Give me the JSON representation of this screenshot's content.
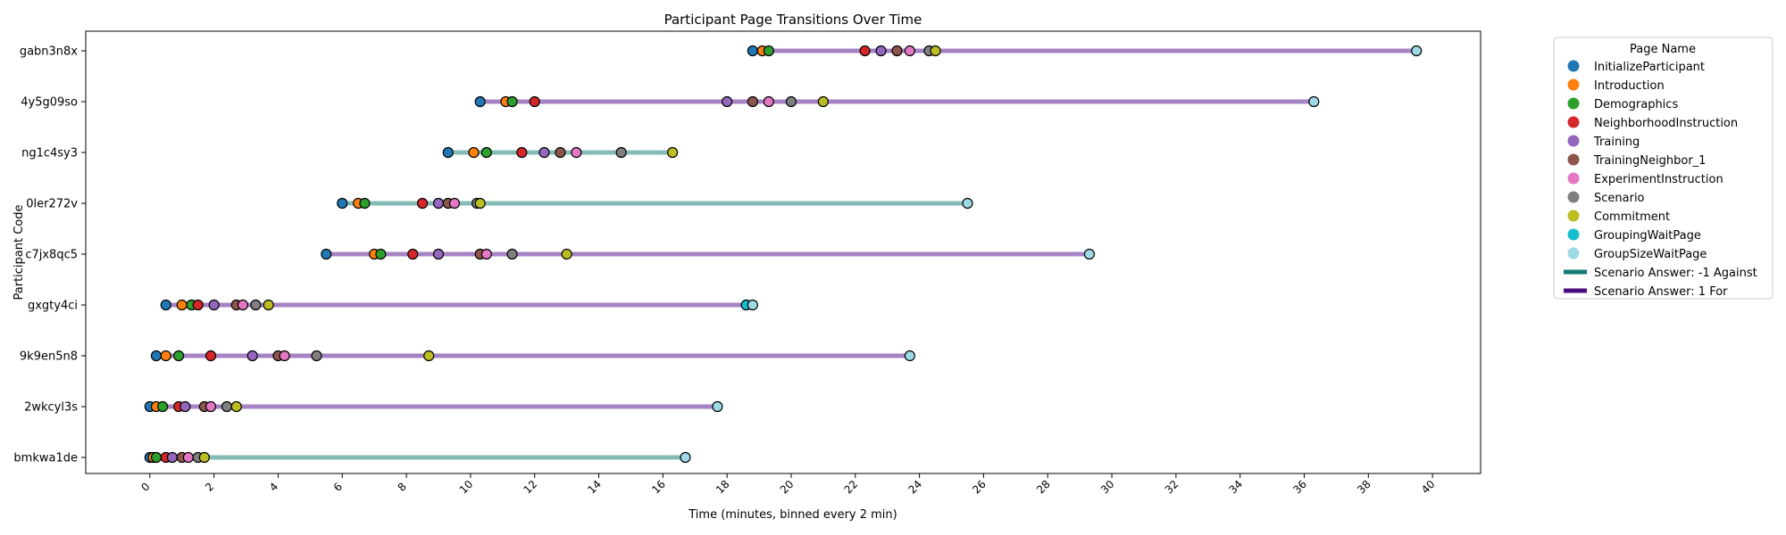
{
  "chart_data": {
    "type": "timeline",
    "title": "Participant Page Transitions Over Time",
    "xlabel": "Time (minutes, binned every 2 min)",
    "ylabel": "Participant Code",
    "xlim": [
      -2,
      41.5
    ],
    "xticks": [
      0,
      2,
      4,
      6,
      8,
      10,
      12,
      14,
      16,
      18,
      20,
      22,
      24,
      26,
      28,
      30,
      32,
      34,
      36,
      38,
      40
    ],
    "grid": false,
    "legend": {
      "title": "Page Name",
      "placement": "outside-right",
      "pages": [
        {
          "name": "InitializeParticipant",
          "color": "#1f77b4"
        },
        {
          "name": "Introduction",
          "color": "#ff7f0e"
        },
        {
          "name": "Demographics",
          "color": "#2ca02c"
        },
        {
          "name": "NeighborhoodInstruction",
          "color": "#d62728"
        },
        {
          "name": "Training",
          "color": "#9467bd"
        },
        {
          "name": "TrainingNeighbor_1",
          "color": "#8c564b"
        },
        {
          "name": "ExperimentInstruction",
          "color": "#e377c2"
        },
        {
          "name": "Scenario",
          "color": "#7f7f7f"
        },
        {
          "name": "Commitment",
          "color": "#bcbd22"
        },
        {
          "name": "GroupingWaitPage",
          "color": "#17becf"
        },
        {
          "name": "GroupSizeWaitPage",
          "color": "#9edae5"
        }
      ],
      "answers": [
        {
          "name": "Scenario Answer: -1 Against",
          "color": "#127a6e"
        },
        {
          "name": "Scenario Answer: 1 For",
          "color": "#4b0e82"
        }
      ]
    },
    "line_colors": {
      "against": "#84bcb5",
      "for": "#a583c4"
    },
    "participants": [
      {
        "code": "gabn3n8x",
        "answer": "for",
        "events": [
          {
            "page": "InitializeParticipant",
            "t": 18.8
          },
          {
            "page": "Introduction",
            "t": 19.1
          },
          {
            "page": "Demographics",
            "t": 19.3
          },
          {
            "page": "NeighborhoodInstruction",
            "t": 22.3
          },
          {
            "page": "Training",
            "t": 22.8
          },
          {
            "page": "TrainingNeighbor_1",
            "t": 23.3
          },
          {
            "page": "ExperimentInstruction",
            "t": 23.7
          },
          {
            "page": "Scenario",
            "t": 24.3
          },
          {
            "page": "Commitment",
            "t": 24.5
          },
          {
            "page": "GroupSizeWaitPage",
            "t": 39.5
          }
        ]
      },
      {
        "code": "4y5g09so",
        "answer": "for",
        "events": [
          {
            "page": "InitializeParticipant",
            "t": 10.3
          },
          {
            "page": "Introduction",
            "t": 11.1
          },
          {
            "page": "Demographics",
            "t": 11.3
          },
          {
            "page": "NeighborhoodInstruction",
            "t": 12.0
          },
          {
            "page": "Training",
            "t": 18.0
          },
          {
            "page": "TrainingNeighbor_1",
            "t": 18.8
          },
          {
            "page": "ExperimentInstruction",
            "t": 19.3
          },
          {
            "page": "Scenario",
            "t": 20.0
          },
          {
            "page": "Commitment",
            "t": 21.0
          },
          {
            "page": "GroupSizeWaitPage",
            "t": 36.3
          }
        ]
      },
      {
        "code": "ng1c4sy3",
        "answer": "against",
        "events": [
          {
            "page": "InitializeParticipant",
            "t": 9.3
          },
          {
            "page": "Introduction",
            "t": 10.1
          },
          {
            "page": "Demographics",
            "t": 10.5
          },
          {
            "page": "NeighborhoodInstruction",
            "t": 11.6
          },
          {
            "page": "Training",
            "t": 12.3
          },
          {
            "page": "TrainingNeighbor_1",
            "t": 12.8
          },
          {
            "page": "ExperimentInstruction",
            "t": 13.3
          },
          {
            "page": "Scenario",
            "t": 14.7
          },
          {
            "page": "Commitment",
            "t": 16.3
          }
        ]
      },
      {
        "code": "0ler272v",
        "answer": "against",
        "events": [
          {
            "page": "InitializeParticipant",
            "t": 6.0
          },
          {
            "page": "Introduction",
            "t": 6.5
          },
          {
            "page": "Demographics",
            "t": 6.7
          },
          {
            "page": "NeighborhoodInstruction",
            "t": 8.5
          },
          {
            "page": "Training",
            "t": 9.0
          },
          {
            "page": "TrainingNeighbor_1",
            "t": 9.3
          },
          {
            "page": "ExperimentInstruction",
            "t": 9.5
          },
          {
            "page": "Scenario",
            "t": 10.2
          },
          {
            "page": "Commitment",
            "t": 10.3
          },
          {
            "page": "GroupSizeWaitPage",
            "t": 25.5
          }
        ]
      },
      {
        "code": "c7jx8qc5",
        "answer": "for",
        "events": [
          {
            "page": "InitializeParticipant",
            "t": 5.5
          },
          {
            "page": "Introduction",
            "t": 7.0
          },
          {
            "page": "Demographics",
            "t": 7.2
          },
          {
            "page": "NeighborhoodInstruction",
            "t": 8.2
          },
          {
            "page": "Training",
            "t": 9.0
          },
          {
            "page": "TrainingNeighbor_1",
            "t": 10.3
          },
          {
            "page": "ExperimentInstruction",
            "t": 10.5
          },
          {
            "page": "Scenario",
            "t": 11.3
          },
          {
            "page": "Commitment",
            "t": 13.0
          },
          {
            "page": "GroupSizeWaitPage",
            "t": 29.3
          }
        ]
      },
      {
        "code": "gxgty4ci",
        "answer": "for",
        "events": [
          {
            "page": "InitializeParticipant",
            "t": 0.5
          },
          {
            "page": "Introduction",
            "t": 1.0
          },
          {
            "page": "Demographics",
            "t": 1.3
          },
          {
            "page": "NeighborhoodInstruction",
            "t": 1.5
          },
          {
            "page": "Training",
            "t": 2.0
          },
          {
            "page": "TrainingNeighbor_1",
            "t": 2.7
          },
          {
            "page": "ExperimentInstruction",
            "t": 2.9
          },
          {
            "page": "Scenario",
            "t": 3.3
          },
          {
            "page": "Commitment",
            "t": 3.7
          },
          {
            "page": "GroupingWaitPage",
            "t": 18.6
          },
          {
            "page": "GroupSizeWaitPage",
            "t": 18.8
          }
        ]
      },
      {
        "code": "9k9en5n8",
        "answer": "for",
        "events": [
          {
            "page": "InitializeParticipant",
            "t": 0.2
          },
          {
            "page": "Introduction",
            "t": 0.5
          },
          {
            "page": "Demographics",
            "t": 0.9
          },
          {
            "page": "NeighborhoodInstruction",
            "t": 1.9
          },
          {
            "page": "Training",
            "t": 3.2
          },
          {
            "page": "TrainingNeighbor_1",
            "t": 4.0
          },
          {
            "page": "ExperimentInstruction",
            "t": 4.2
          },
          {
            "page": "Scenario",
            "t": 5.2
          },
          {
            "page": "Commitment",
            "t": 8.7
          },
          {
            "page": "GroupSizeWaitPage",
            "t": 23.7
          }
        ]
      },
      {
        "code": "2wkcyl3s",
        "answer": "for",
        "events": [
          {
            "page": "InitializeParticipant",
            "t": 0.0
          },
          {
            "page": "Introduction",
            "t": 0.2
          },
          {
            "page": "Demographics",
            "t": 0.4
          },
          {
            "page": "NeighborhoodInstruction",
            "t": 0.9
          },
          {
            "page": "Training",
            "t": 1.1
          },
          {
            "page": "TrainingNeighbor_1",
            "t": 1.7
          },
          {
            "page": "ExperimentInstruction",
            "t": 1.9
          },
          {
            "page": "Scenario",
            "t": 2.4
          },
          {
            "page": "Commitment",
            "t": 2.7
          },
          {
            "page": "GroupSizeWaitPage",
            "t": 17.7
          }
        ]
      },
      {
        "code": "bmkwa1de",
        "answer": "against",
        "events": [
          {
            "page": "InitializeParticipant",
            "t": 0.0
          },
          {
            "page": "Introduction",
            "t": 0.1
          },
          {
            "page": "Demographics",
            "t": 0.2
          },
          {
            "page": "NeighborhoodInstruction",
            "t": 0.5
          },
          {
            "page": "Training",
            "t": 0.7
          },
          {
            "page": "TrainingNeighbor_1",
            "t": 1.0
          },
          {
            "page": "ExperimentInstruction",
            "t": 1.2
          },
          {
            "page": "Scenario",
            "t": 1.5
          },
          {
            "page": "Commitment",
            "t": 1.7
          },
          {
            "page": "GroupSizeWaitPage",
            "t": 16.7
          }
        ]
      }
    ]
  }
}
